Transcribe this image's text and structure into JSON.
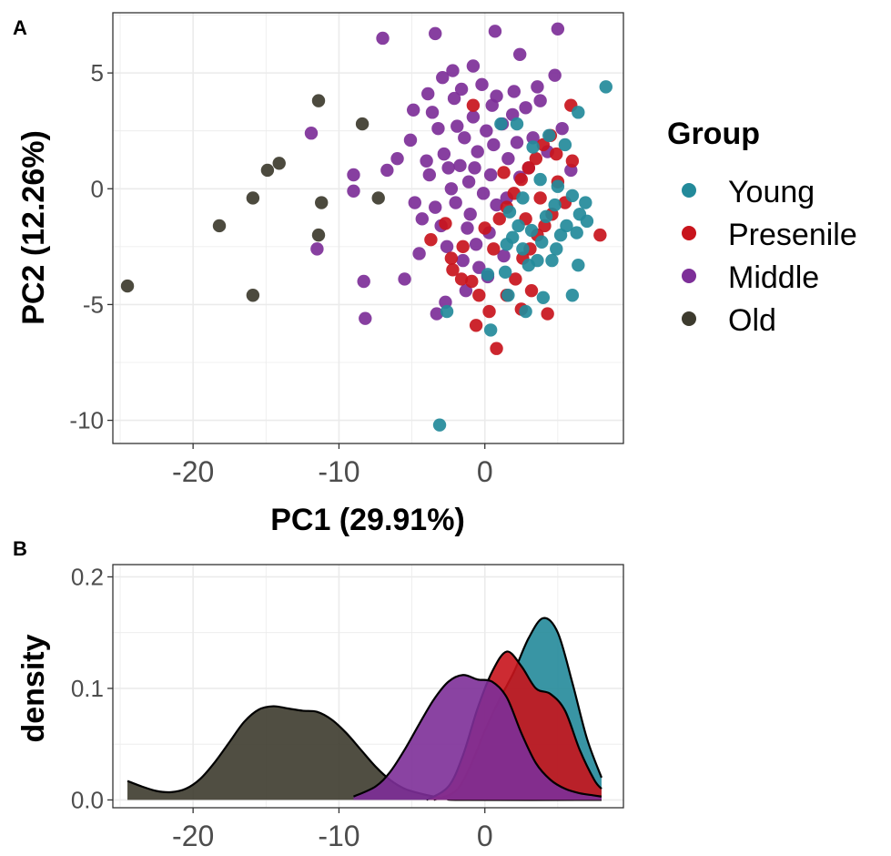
{
  "chart_data": [
    {
      "panel": "A",
      "type": "scatter",
      "xlabel": "PC1 (29.91%)",
      "ylabel": "PC2 (12.26%)",
      "xlim": [
        -25.5,
        9.5
      ],
      "ylim": [
        -11,
        7.6
      ],
      "xticks": [
        -20,
        -10,
        0
      ],
      "yticks": [
        -10,
        -5,
        0,
        5
      ],
      "grid": true,
      "legend": {
        "title": "Group",
        "position": "right",
        "entries": [
          {
            "label": "Young",
            "color": "#238a9a"
          },
          {
            "label": "Presenile",
            "color": "#c8141c"
          },
          {
            "label": "Middle",
            "color": "#7d2f98"
          },
          {
            "label": "Old",
            "color": "#3d3b2e"
          }
        ]
      },
      "series": [
        {
          "name": "Old",
          "color": "#3d3b2e",
          "points": [
            [
              -24.5,
              -4.2
            ],
            [
              -18.2,
              -1.6
            ],
            [
              -15.9,
              -4.6
            ],
            [
              -15.9,
              -0.4
            ],
            [
              -14.9,
              0.8
            ],
            [
              -14.1,
              1.1
            ],
            [
              -11.4,
              3.8
            ],
            [
              -11.2,
              -0.6
            ],
            [
              -11.4,
              -2.0
            ],
            [
              -8.4,
              2.8
            ],
            [
              -7.3,
              -0.4
            ]
          ]
        },
        {
          "name": "Middle",
          "color": "#7d2f98",
          "points": [
            [
              -7.0,
              6.5
            ],
            [
              -3.4,
              6.7
            ],
            [
              0.7,
              6.8
            ],
            [
              5.0,
              6.9
            ],
            [
              -2.2,
              5.1
            ],
            [
              -0.8,
              5.3
            ],
            [
              2.4,
              5.8
            ],
            [
              -11.9,
              2.4
            ],
            [
              -9.0,
              0.6
            ],
            [
              -9.0,
              -0.1
            ],
            [
              -6.7,
              0.8
            ],
            [
              -11.5,
              -2.6
            ],
            [
              -8.3,
              -4.0
            ],
            [
              -8.2,
              -5.6
            ],
            [
              -5.5,
              -3.9
            ],
            [
              -4.8,
              -0.6
            ],
            [
              -4.5,
              -2.8
            ],
            [
              -3.9,
              4.1
            ],
            [
              -3.6,
              3.3
            ],
            [
              -3.2,
              2.6
            ],
            [
              -2.8,
              1.5
            ],
            [
              -2.5,
              0.9
            ],
            [
              -2.1,
              3.9
            ],
            [
              -1.7,
              1.0
            ],
            [
              -1.4,
              2.2
            ],
            [
              -1.1,
              0.3
            ],
            [
              -0.8,
              3.1
            ],
            [
              -0.5,
              1.6
            ],
            [
              -0.2,
              4.5
            ],
            [
              0.1,
              2.5
            ],
            [
              0.4,
              0.6
            ],
            [
              0.8,
              4.0
            ],
            [
              1.2,
              2.8
            ],
            [
              1.6,
              1.3
            ],
            [
              2.0,
              4.2
            ],
            [
              2.4,
              0.5
            ],
            [
              2.8,
              3.5
            ],
            [
              3.3,
              2.2
            ],
            [
              3.8,
              3.8
            ],
            [
              4.3,
              1.6
            ],
            [
              4.8,
              4.9
            ],
            [
              5.3,
              2.6
            ],
            [
              5.9,
              0.8
            ],
            [
              -5.1,
              2.1
            ],
            [
              -4.3,
              -1.3
            ],
            [
              -3.8,
              0.6
            ],
            [
              -3.0,
              -1.6
            ],
            [
              -2.6,
              -2.5
            ],
            [
              -2.0,
              -0.6
            ],
            [
              -1.5,
              -3.1
            ],
            [
              -1.0,
              -1.1
            ],
            [
              -0.6,
              -2.4
            ],
            [
              -0.1,
              -0.2
            ],
            [
              0.3,
              -1.9
            ],
            [
              0.8,
              -0.7
            ],
            [
              1.3,
              -2.9
            ],
            [
              -3.3,
              -5.4
            ],
            [
              -2.7,
              -4.9
            ],
            [
              -1.3,
              -4.4
            ],
            [
              -0.4,
              -3.4
            ],
            [
              0.2,
              -3.8
            ],
            [
              -6.0,
              1.3
            ],
            [
              -4.0,
              1.2
            ],
            [
              -3.4,
              -0.8
            ],
            [
              -2.3,
              0.0
            ],
            [
              -1.9,
              2.7
            ],
            [
              -1.2,
              -1.7
            ],
            [
              -0.7,
              0.9
            ],
            [
              0.6,
              1.9
            ],
            [
              1.5,
              -0.4
            ],
            [
              2.2,
              2.0
            ],
            [
              3.0,
              0.9
            ],
            [
              -4.9,
              3.4
            ],
            [
              -2.9,
              4.8
            ],
            [
              -1.6,
              4.3
            ],
            [
              0.5,
              3.6
            ],
            [
              1.9,
              3.2
            ],
            [
              3.6,
              4.4
            ]
          ]
        },
        {
          "name": "Presenile",
          "color": "#c8141c",
          "points": [
            [
              -0.8,
              3.6
            ],
            [
              -2.7,
              -1.5
            ],
            [
              -3.7,
              -2.2
            ],
            [
              -2.2,
              -3.5
            ],
            [
              -1.6,
              -3.9
            ],
            [
              -0.9,
              -4.0
            ],
            [
              -0.4,
              -4.6
            ],
            [
              0.3,
              -5.3
            ],
            [
              0.8,
              -6.9
            ],
            [
              -0.6,
              -5.9
            ],
            [
              1.5,
              -4.6
            ],
            [
              2.1,
              -3.9
            ],
            [
              2.6,
              -3.0
            ],
            [
              3.1,
              -2.6
            ],
            [
              3.6,
              -2.0
            ],
            [
              4.1,
              -1.6
            ],
            [
              4.6,
              -1.1
            ],
            [
              1.0,
              -1.3
            ],
            [
              1.5,
              -0.8
            ],
            [
              2.0,
              -0.2
            ],
            [
              2.5,
              0.4
            ],
            [
              3.0,
              0.9
            ],
            [
              3.5,
              1.3
            ],
            [
              4.0,
              1.9
            ],
            [
              4.5,
              2.3
            ],
            [
              5.0,
              0.3
            ],
            [
              5.5,
              -0.6
            ],
            [
              6.0,
              1.2
            ],
            [
              7.9,
              -2.0
            ],
            [
              5.9,
              3.6
            ],
            [
              4.3,
              -5.4
            ],
            [
              3.2,
              -4.4
            ],
            [
              2.5,
              -5.2
            ],
            [
              0.6,
              -2.6
            ],
            [
              0.0,
              -1.7
            ],
            [
              -1.5,
              -2.5
            ],
            [
              -2.3,
              -3.0
            ],
            [
              1.3,
              0.7
            ],
            [
              2.8,
              -1.3
            ],
            [
              3.8,
              -0.4
            ],
            [
              4.9,
              1.5
            ]
          ]
        },
        {
          "name": "Young",
          "color": "#238a9a",
          "points": [
            [
              8.3,
              4.4
            ],
            [
              6.4,
              3.3
            ],
            [
              5.5,
              1.9
            ],
            [
              4.4,
              2.3
            ],
            [
              3.3,
              1.8
            ],
            [
              2.2,
              2.8
            ],
            [
              1.1,
              2.8
            ],
            [
              -3.1,
              -10.2
            ],
            [
              0.4,
              -6.1
            ],
            [
              -2.6,
              -5.3
            ],
            [
              2.8,
              -5.3
            ],
            [
              4.0,
              -4.7
            ],
            [
              6.0,
              -4.6
            ],
            [
              6.4,
              -3.3
            ],
            [
              4.6,
              -3.1
            ],
            [
              3.0,
              -3.3
            ],
            [
              1.4,
              -3.6
            ],
            [
              0.2,
              -3.7
            ],
            [
              1.6,
              -4.6
            ],
            [
              1.9,
              -2.1
            ],
            [
              2.6,
              -2.6
            ],
            [
              3.6,
              -3.1
            ],
            [
              4.9,
              -2.6
            ],
            [
              5.6,
              -1.6
            ],
            [
              6.3,
              -1.9
            ],
            [
              7.0,
              -1.4
            ],
            [
              6.9,
              -0.6
            ],
            [
              6.0,
              -0.3
            ],
            [
              5.0,
              0.1
            ],
            [
              3.8,
              0.4
            ],
            [
              2.6,
              -0.4
            ],
            [
              1.7,
              -1.0
            ],
            [
              3.2,
              -1.8
            ],
            [
              4.2,
              -1.2
            ],
            [
              5.2,
              -2.0
            ],
            [
              6.5,
              -1.1
            ],
            [
              2.3,
              -1.6
            ],
            [
              1.5,
              -2.4
            ],
            [
              3.9,
              -2.3
            ],
            [
              4.8,
              -0.7
            ]
          ]
        }
      ]
    },
    {
      "panel": "B",
      "type": "area",
      "ylabel": "density",
      "xlim": [
        -25.5,
        9.5
      ],
      "ylim": [
        -0.007,
        0.211
      ],
      "xticks": [
        -20,
        -10,
        0
      ],
      "yticks": [
        0.0,
        0.1,
        0.2
      ],
      "grid": true,
      "series": [
        {
          "name": "Old",
          "color": "#3d3b2e",
          "points": [
            [
              -24.5,
              0.017
            ],
            [
              -23.5,
              0.012
            ],
            [
              -22.5,
              0.008
            ],
            [
              -21.5,
              0.007
            ],
            [
              -20.5,
              0.01
            ],
            [
              -19.5,
              0.019
            ],
            [
              -18.5,
              0.034
            ],
            [
              -17.5,
              0.052
            ],
            [
              -16.5,
              0.07
            ],
            [
              -15.5,
              0.081
            ],
            [
              -14.5,
              0.084
            ],
            [
              -13.5,
              0.082
            ],
            [
              -12.5,
              0.08
            ],
            [
              -11.5,
              0.079
            ],
            [
              -10.5,
              0.072
            ],
            [
              -9.5,
              0.06
            ],
            [
              -8.5,
              0.045
            ],
            [
              -7.5,
              0.03
            ],
            [
              -6.5,
              0.018
            ],
            [
              -5.5,
              0.01
            ],
            [
              -4.5,
              0.006
            ],
            [
              -3.5,
              0.003
            ],
            [
              -2.5,
              0.001
            ],
            [
              -1.5,
              0.0
            ],
            [
              8.0,
              0.0
            ]
          ]
        },
        {
          "name": "Young",
          "color": "#238a9a",
          "points": [
            [
              -3.5,
              0.0
            ],
            [
              -2.0,
              0.008
            ],
            [
              -1.0,
              0.03
            ],
            [
              0.0,
              0.062
            ],
            [
              1.0,
              0.09
            ],
            [
              2.0,
              0.115
            ],
            [
              3.0,
              0.145
            ],
            [
              4.0,
              0.163
            ],
            [
              5.0,
              0.15
            ],
            [
              6.0,
              0.105
            ],
            [
              7.0,
              0.055
            ],
            [
              8.0,
              0.02
            ]
          ]
        },
        {
          "name": "Presenile",
          "color": "#c8141c",
          "points": [
            [
              -4.0,
              0.0
            ],
            [
              -2.5,
              0.012
            ],
            [
              -1.5,
              0.04
            ],
            [
              -0.5,
              0.082
            ],
            [
              0.5,
              0.115
            ],
            [
              1.5,
              0.133
            ],
            [
              2.5,
              0.12
            ],
            [
              3.5,
              0.1
            ],
            [
              4.5,
              0.095
            ],
            [
              5.5,
              0.08
            ],
            [
              6.5,
              0.045
            ],
            [
              7.5,
              0.018
            ],
            [
              8.0,
              0.01
            ]
          ]
        },
        {
          "name": "Middle",
          "color": "#7d2f98",
          "points": [
            [
              -9.0,
              0.003
            ],
            [
              -7.5,
              0.012
            ],
            [
              -6.5,
              0.025
            ],
            [
              -5.5,
              0.045
            ],
            [
              -4.5,
              0.068
            ],
            [
              -3.5,
              0.09
            ],
            [
              -2.5,
              0.106
            ],
            [
              -1.5,
              0.112
            ],
            [
              -0.5,
              0.108
            ],
            [
              0.5,
              0.106
            ],
            [
              1.5,
              0.092
            ],
            [
              2.5,
              0.06
            ],
            [
              3.5,
              0.033
            ],
            [
              4.5,
              0.018
            ],
            [
              5.5,
              0.01
            ],
            [
              6.5,
              0.006
            ],
            [
              7.5,
              0.004
            ],
            [
              8.0,
              0.003
            ]
          ]
        }
      ]
    }
  ]
}
